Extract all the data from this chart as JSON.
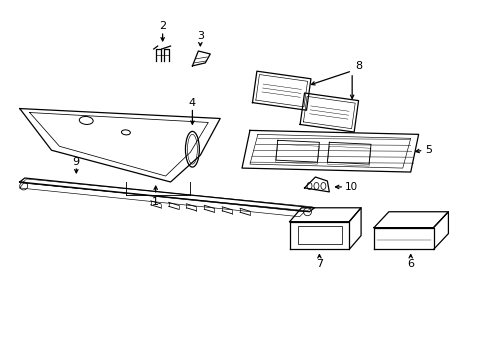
{
  "background_color": "#ffffff",
  "line_color": "#000000",
  "lw": 0.9
}
